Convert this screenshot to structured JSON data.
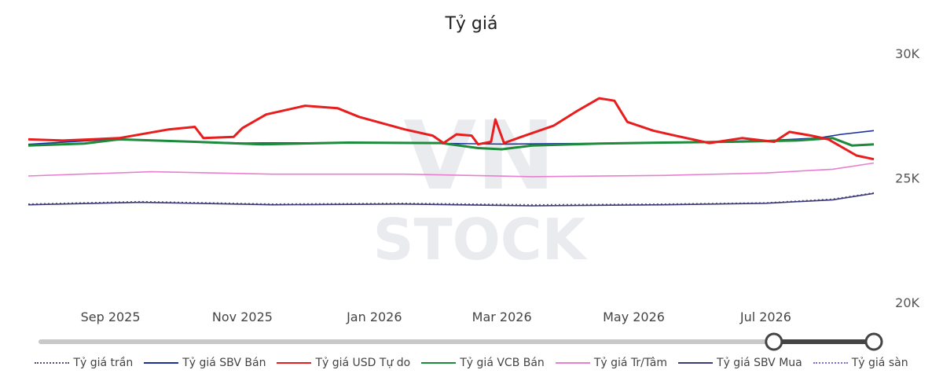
{
  "chart_data": {
    "type": "line",
    "title": "Tỷ giá",
    "y_axis": {
      "ticks": [
        "20K",
        "25K",
        "30K"
      ],
      "ylim": [
        20000,
        30000
      ],
      "position": "right"
    },
    "x_axis": {
      "ticks": [
        "Sep 2025",
        "Nov 2025",
        "Jan 2026",
        "Mar 2026",
        "May 2026",
        "Jul 2026"
      ],
      "range": [
        "2025-07-25",
        "2026-08-20"
      ]
    },
    "legend_placement": "bottom",
    "series": [
      {
        "name": "Tỷ giá trần",
        "color": "#555577",
        "dash": true,
        "points": [
          [
            "2025-07-25",
            23950
          ],
          [
            "2025-09-15",
            24050
          ],
          [
            "2025-11-15",
            23950
          ],
          [
            "2026-01-15",
            23980
          ],
          [
            "2026-03-15",
            23920
          ],
          [
            "2026-05-15",
            23950
          ],
          [
            "2026-07-01",
            24000
          ],
          [
            "2026-08-01",
            24150
          ],
          [
            "2026-08-20",
            24400
          ]
        ]
      },
      {
        "name": "Tỷ giá SBV Bán",
        "color": "#1a2f9c",
        "dash": false,
        "points": [
          [
            "2025-07-25",
            26350
          ],
          [
            "2025-09-01",
            26550
          ],
          [
            "2025-11-01",
            26400
          ],
          [
            "2026-01-01",
            26420
          ],
          [
            "2026-03-01",
            26360
          ],
          [
            "2026-05-01",
            26400
          ],
          [
            "2026-07-01",
            26500
          ],
          [
            "2026-07-25",
            26600
          ],
          [
            "2026-08-05",
            26750
          ],
          [
            "2026-08-20",
            26900
          ]
        ]
      },
      {
        "name": "Tỷ giá USD Tự do",
        "color": "#e81d1d",
        "dash": false,
        "points": [
          [
            "2025-07-25",
            26550
          ],
          [
            "2025-08-10",
            26500
          ],
          [
            "2025-09-05",
            26600
          ],
          [
            "2025-09-28",
            26950
          ],
          [
            "2025-10-10",
            27050
          ],
          [
            "2025-10-14",
            26600
          ],
          [
            "2025-10-28",
            26650
          ],
          [
            "2025-11-01",
            27000
          ],
          [
            "2025-11-12",
            27550
          ],
          [
            "2025-11-30",
            27900
          ],
          [
            "2025-12-15",
            27800
          ],
          [
            "2025-12-25",
            27450
          ],
          [
            "2026-01-15",
            26950
          ],
          [
            "2026-01-28",
            26700
          ],
          [
            "2026-02-02",
            26400
          ],
          [
            "2026-02-08",
            26750
          ],
          [
            "2026-02-15",
            26700
          ],
          [
            "2026-02-18",
            26350
          ],
          [
            "2026-02-24",
            26450
          ],
          [
            "2026-02-26",
            27350
          ],
          [
            "2026-03-02",
            26400
          ],
          [
            "2026-03-10",
            26650
          ],
          [
            "2026-03-25",
            27100
          ],
          [
            "2026-04-05",
            27700
          ],
          [
            "2026-04-15",
            28200
          ],
          [
            "2026-04-22",
            28100
          ],
          [
            "2026-04-28",
            27250
          ],
          [
            "2026-05-10",
            26900
          ],
          [
            "2026-05-20",
            26700
          ],
          [
            "2026-06-05",
            26400
          ],
          [
            "2026-06-20",
            26600
          ],
          [
            "2026-07-05",
            26450
          ],
          [
            "2026-07-12",
            26850
          ],
          [
            "2026-07-22",
            26700
          ],
          [
            "2026-07-30",
            26550
          ],
          [
            "2026-08-05",
            26250
          ],
          [
            "2026-08-12",
            25900
          ],
          [
            "2026-08-20",
            25750
          ]
        ]
      },
      {
        "name": "Tỷ giá VCB Bán",
        "color": "#1e8a3c",
        "dash": false,
        "points": [
          [
            "2025-07-25",
            26300
          ],
          [
            "2025-08-20",
            26380
          ],
          [
            "2025-09-05",
            26550
          ],
          [
            "2025-10-10",
            26450
          ],
          [
            "2025-11-10",
            26350
          ],
          [
            "2025-12-20",
            26420
          ],
          [
            "2026-02-01",
            26400
          ],
          [
            "2026-02-18",
            26200
          ],
          [
            "2026-03-01",
            26150
          ],
          [
            "2026-03-15",
            26300
          ],
          [
            "2026-04-15",
            26380
          ],
          [
            "2026-05-15",
            26420
          ],
          [
            "2026-06-15",
            26450
          ],
          [
            "2026-07-15",
            26500
          ],
          [
            "2026-08-01",
            26600
          ],
          [
            "2026-08-10",
            26300
          ],
          [
            "2026-08-20",
            26350
          ]
        ]
      },
      {
        "name": "Tỷ giá Tr/Tâm",
        "color": "#e77fcf",
        "dash": false,
        "points": [
          [
            "2025-07-25",
            25080
          ],
          [
            "2025-09-20",
            25250
          ],
          [
            "2025-11-15",
            25150
          ],
          [
            "2026-01-15",
            25150
          ],
          [
            "2026-03-15",
            25050
          ],
          [
            "2026-05-15",
            25100
          ],
          [
            "2026-07-01",
            25200
          ],
          [
            "2026-08-01",
            25350
          ],
          [
            "2026-08-20",
            25600
          ]
        ]
      },
      {
        "name": "Tỷ giá SBV Mua",
        "color": "#3d3a7a",
        "dash": false,
        "points": [
          [
            "2025-07-25",
            23920
          ],
          [
            "2025-09-15",
            24020
          ],
          [
            "2025-11-15",
            23920
          ],
          [
            "2026-01-15",
            23950
          ],
          [
            "2026-03-15",
            23880
          ],
          [
            "2026-05-15",
            23920
          ],
          [
            "2026-07-01",
            23980
          ],
          [
            "2026-08-01",
            24120
          ],
          [
            "2026-08-20",
            24380
          ]
        ]
      },
      {
        "name": "Tỷ giá sàn",
        "color": "#7b6fd0",
        "dash": true,
        "points": []
      }
    ]
  },
  "slider": {
    "start": 0.0,
    "end": 1.0,
    "handle_start": 0.88
  }
}
